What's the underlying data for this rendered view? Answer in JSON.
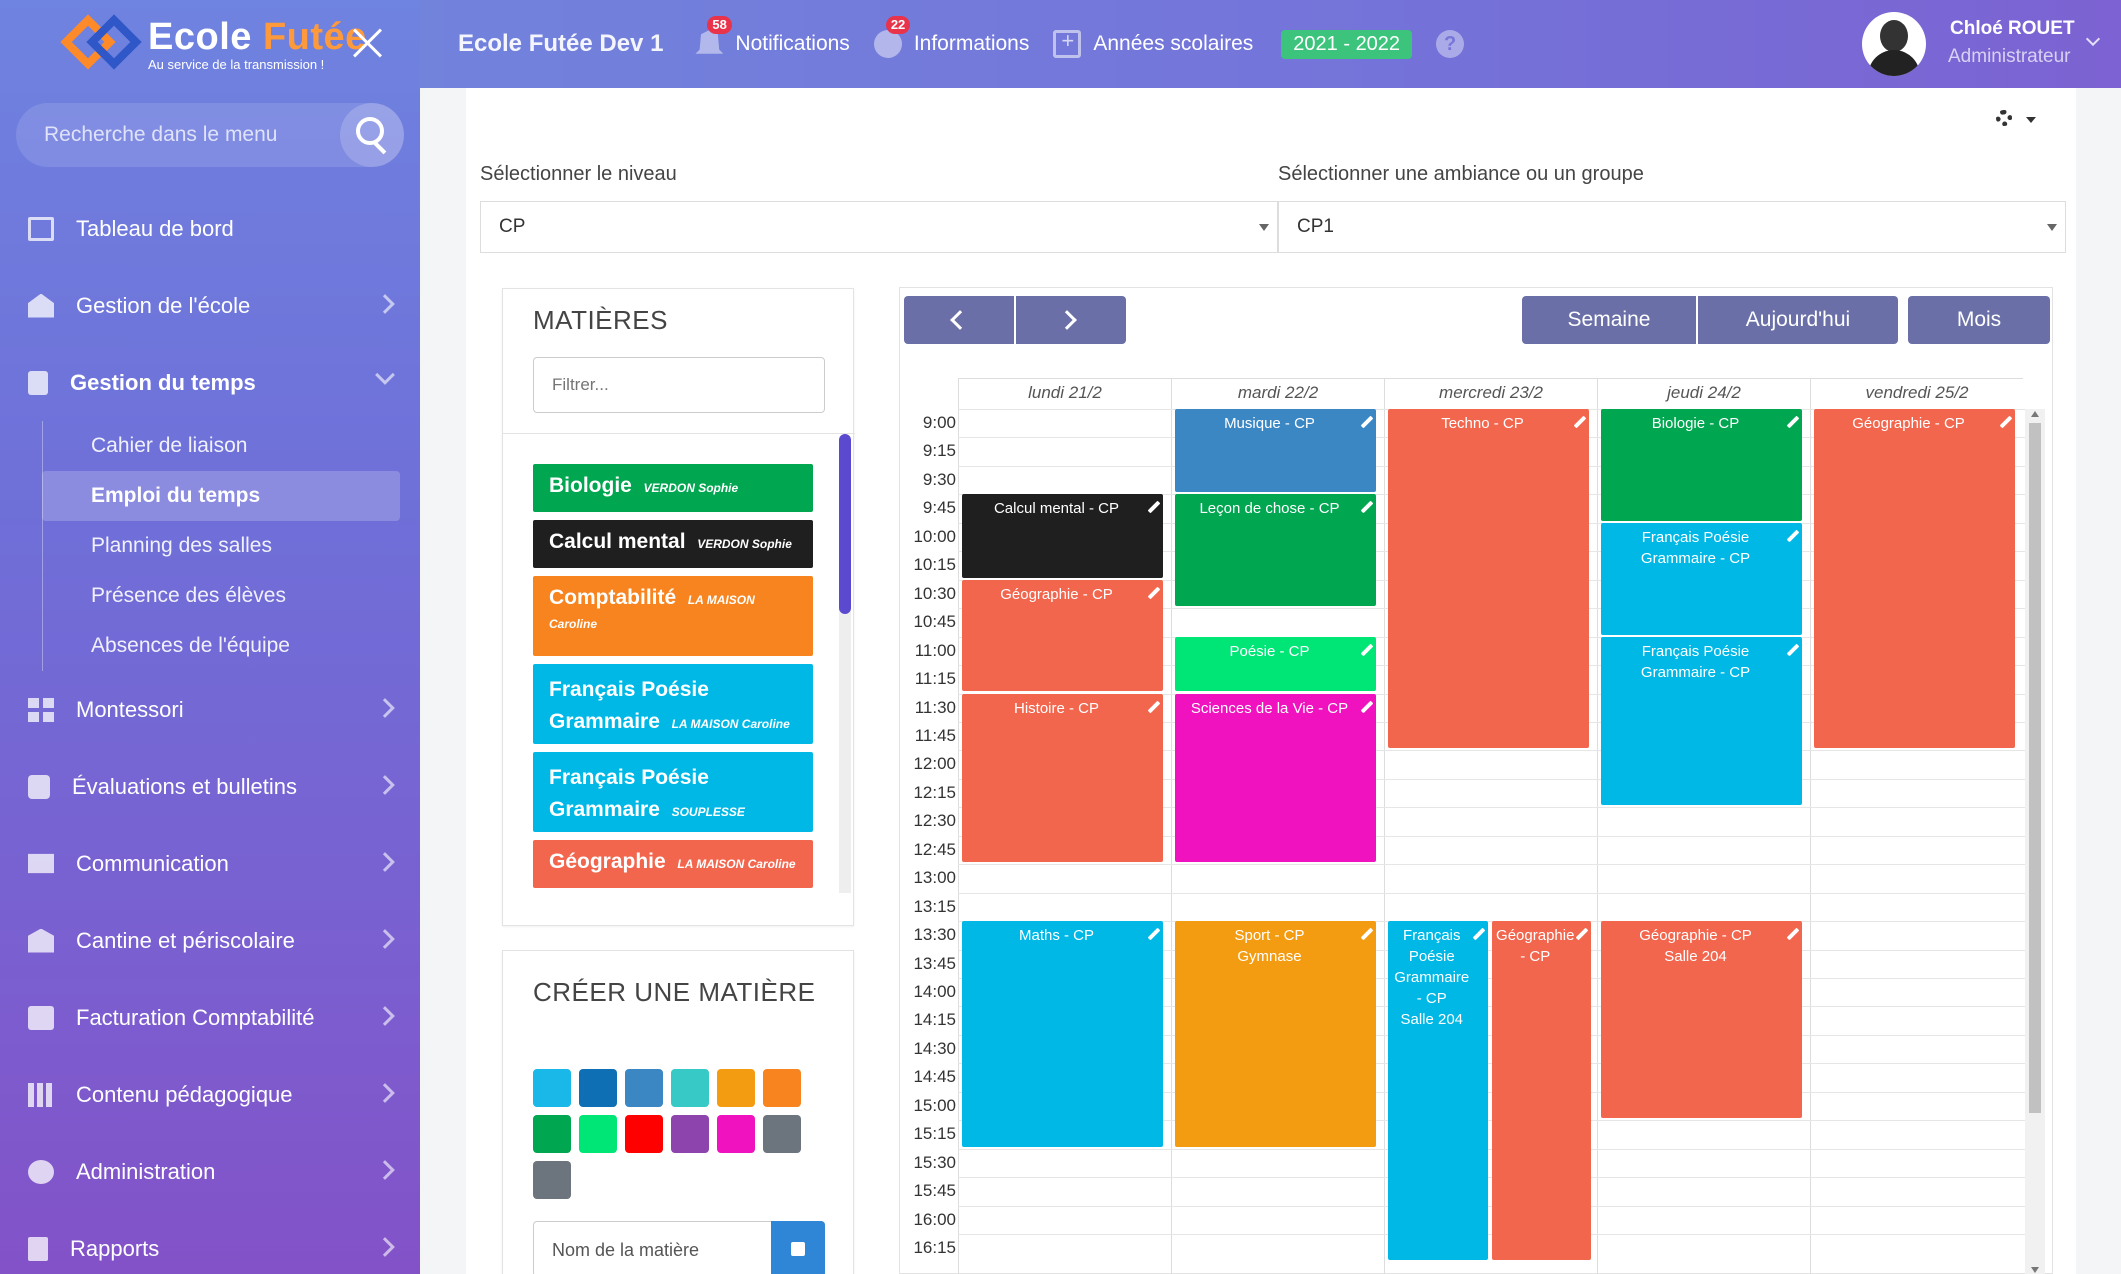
{
  "sidebar": {
    "logo": {
      "name_part1": "Ecole ",
      "name_part2": "Futée",
      "tagline": "Au service de la transmission !"
    },
    "search_placeholder": "Recherche dans le menu",
    "items": [
      {
        "label": "Tableau de bord",
        "icon": "monitor-icon"
      },
      {
        "label": "Gestion de l'école",
        "icon": "building-icon"
      },
      {
        "label": "Gestion du temps",
        "icon": "clipboard-icon"
      },
      {
        "label": "Montessori",
        "icon": "grid-icon"
      },
      {
        "label": "Évaluations et bulletins",
        "icon": "puzzle-icon"
      },
      {
        "label": "Communication",
        "icon": "mail-icon"
      },
      {
        "label": "Cantine et périscolaire",
        "icon": "bank-icon"
      },
      {
        "label": "Facturation Comptabilité",
        "icon": "money-icon"
      },
      {
        "label": "Contenu pédagogique",
        "icon": "books-icon"
      },
      {
        "label": "Administration",
        "icon": "gauge-icon"
      },
      {
        "label": "Rapports",
        "icon": "report-icon"
      }
    ],
    "sub_items": [
      "Cahier de liaison",
      "Emploi du temps",
      "Planning des salles",
      "Présence des élèves",
      "Absences de l'équipe"
    ]
  },
  "header": {
    "title": "Ecole Futée Dev 1",
    "notifications": {
      "label": "Notifications",
      "count": "58"
    },
    "informations": {
      "label": "Informations",
      "count": "22"
    },
    "years": {
      "label": "Années scolaires"
    },
    "current_year": "2021 - 2022",
    "help": "?",
    "user": {
      "name": "Chloé ROUET",
      "role": "Administrateur"
    }
  },
  "main": {
    "level_label": "Sélectionner le niveau",
    "level_value": "CP",
    "group_label": "Sélectionner une ambiance ou un groupe",
    "group_value": "CP1"
  },
  "subjects_panel": {
    "title": "MATIÈRES",
    "filter_placeholder": "Filtrer...",
    "subjects": [
      {
        "name": "Biologie",
        "teacher": "VERDON Sophie",
        "color": "#00a650"
      },
      {
        "name": "Calcul mental",
        "teacher": "VERDON Sophie",
        "color": "#1f1f1f"
      },
      {
        "name": "Comptabilité",
        "teacher": "LA MAISON Caroline",
        "color": "#f7841e"
      },
      {
        "name": "Français Poésie Grammaire",
        "teacher": "LA MAISON Caroline",
        "color": "#00b8e6"
      },
      {
        "name": "Français Poésie Grammaire",
        "teacher": "SOUPLESSE Ludivine",
        "color": "#00b8e6"
      },
      {
        "name": "Géographie",
        "teacher": "LA MAISON Caroline",
        "color": "#f2664e"
      }
    ]
  },
  "create_panel": {
    "title": "CRÉER UNE MATIÈRE",
    "swatches": [
      "#1ab8e8",
      "#0f6fb4",
      "#3b87c4",
      "#36c9c6",
      "#f39c12",
      "#f7841e",
      "#00a650",
      "#00e676",
      "#ff0000",
      "#8e44ad",
      "#f012be",
      "#6c757d",
      "#6c757d"
    ],
    "name_placeholder": "Nom de la matière"
  },
  "calendar": {
    "nav_prev": "<",
    "nav_next": ">",
    "views": [
      "Semaine",
      "Aujourd'hui",
      "Mois"
    ],
    "days": [
      "lundi 21/2",
      "mardi 22/2",
      "mercredi 23/2",
      "jeudi 24/2",
      "vendredi 25/2"
    ],
    "times": [
      "9:00",
      "9:15",
      "9:30",
      "9:45",
      "10:00",
      "10:15",
      "10:30",
      "10:45",
      "11:00",
      "11:15",
      "11:30",
      "11:45",
      "12:00",
      "12:15",
      "12:30",
      "12:45",
      "13:00",
      "13:15",
      "13:30",
      "13:45",
      "14:00",
      "14:15",
      "14:30",
      "14:45",
      "15:00",
      "15:15",
      "15:30",
      "15:45",
      "16:00",
      "16:15"
    ],
    "events": [
      {
        "day": 0,
        "start": "9:45",
        "end": "10:30",
        "title": "Calcul mental - CP",
        "color": "#1f1f1f"
      },
      {
        "day": 0,
        "start": "10:30",
        "end": "11:30",
        "title": "Géographie - CP",
        "color": "#f2664e"
      },
      {
        "day": 0,
        "start": "11:30",
        "end": "13:00",
        "title": "Histoire - CP",
        "color": "#f2664e"
      },
      {
        "day": 0,
        "start": "13:30",
        "end": "15:30",
        "title": "Maths - CP",
        "color": "#00b8e6"
      },
      {
        "day": 1,
        "start": "9:00",
        "end": "9:45",
        "title": "Musique - CP",
        "color": "#3b87c4"
      },
      {
        "day": 1,
        "start": "9:45",
        "end": "10:45",
        "title": "Leçon de chose - CP",
        "color": "#00a650"
      },
      {
        "day": 1,
        "start": "11:00",
        "end": "11:30",
        "title": "Poésie - CP",
        "color": "#00e676"
      },
      {
        "day": 1,
        "start": "11:30",
        "end": "13:00",
        "title": "Sciences de la Vie - CP",
        "color": "#f012be"
      },
      {
        "day": 1,
        "start": "13:30",
        "end": "15:30",
        "title": "Sport - CP",
        "subtitle": "Gymnase",
        "color": "#f39c12"
      },
      {
        "day": 2,
        "start": "9:00",
        "end": "12:00",
        "title": "Techno - CP",
        "color": "#f2664e"
      },
      {
        "day": 2,
        "start": "13:30",
        "end": "16:30",
        "title": "Français Poésie Grammaire - CP",
        "subtitle": "Salle 204",
        "color": "#00b8e6",
        "half": 0
      },
      {
        "day": 2,
        "start": "13:30",
        "end": "16:30",
        "title": "Géographie - CP",
        "color": "#f2664e",
        "half": 1
      },
      {
        "day": 3,
        "start": "9:00",
        "end": "10:00",
        "title": "Biologie - CP",
        "color": "#00a650"
      },
      {
        "day": 3,
        "start": "10:00",
        "end": "11:00",
        "title": "Français Poésie Grammaire - CP",
        "color": "#00b8e6"
      },
      {
        "day": 3,
        "start": "11:00",
        "end": "12:30",
        "title": "Français Poésie Grammaire - CP",
        "color": "#00b8e6"
      },
      {
        "day": 3,
        "start": "13:30",
        "end": "15:15",
        "title": "Géographie - CP",
        "subtitle": "Salle 204",
        "color": "#f2664e"
      },
      {
        "day": 4,
        "start": "9:00",
        "end": "12:00",
        "title": "Géographie - CP",
        "color": "#f2664e"
      }
    ]
  }
}
